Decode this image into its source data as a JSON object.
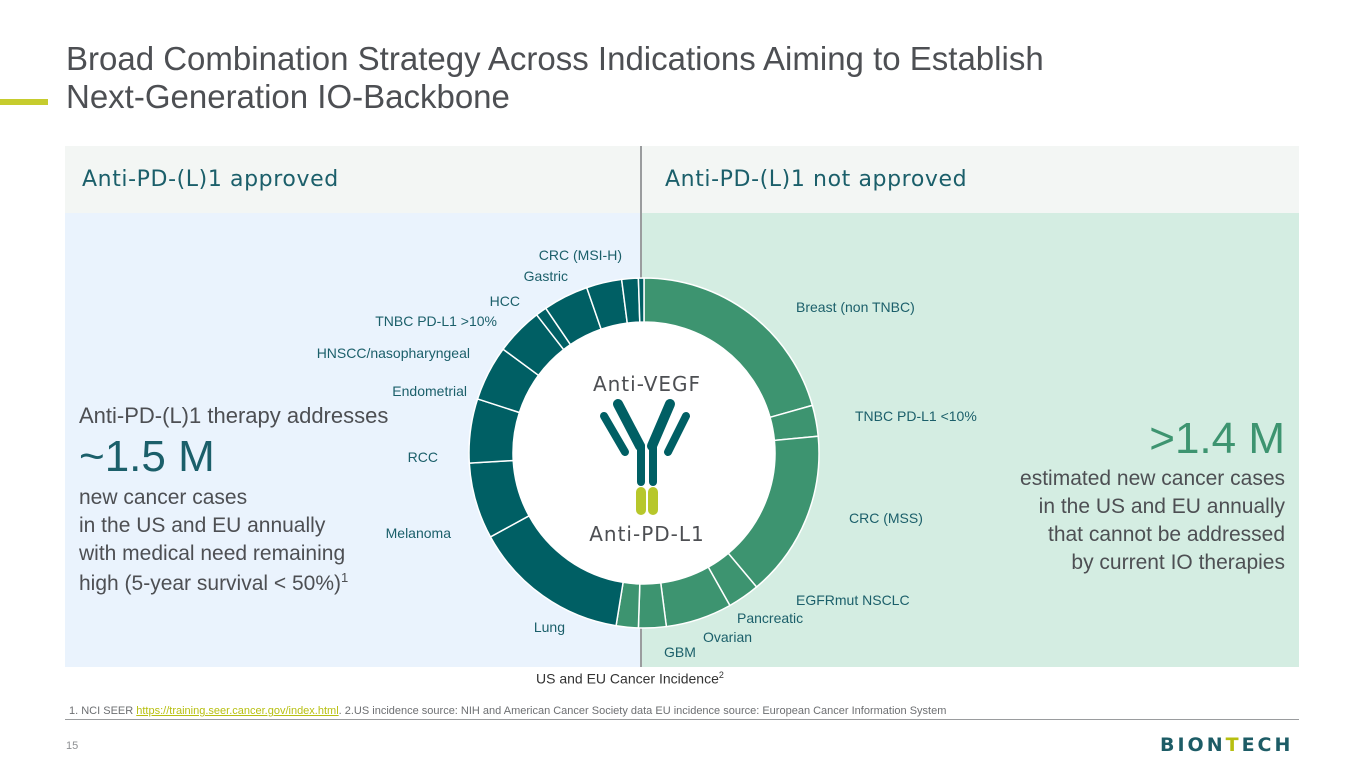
{
  "title": {
    "line1": "Broad Combination Strategy Across Indications Aiming to Establish",
    "line2": "Next-Generation IO-Backbone"
  },
  "colors": {
    "accent": "#c6cc2e",
    "dark_teal": "#005f64",
    "green": "#3d9470",
    "left_panel": "#eaf3fd",
    "right_panel": "#d4ede2",
    "header_bg": "#f3f6f4",
    "text_teal": "#1b5f6a",
    "antibody_dark": "#005f64",
    "antibody_lime": "#b7c72b"
  },
  "headers": {
    "approved": "Anti-PD-(L)1 approved",
    "not_approved": "Anti-PD-(L)1 not approved"
  },
  "left_stat": {
    "intro": "Anti-PD-(L)1 therapy addresses",
    "value": "~1.5 M",
    "line1": "new cancer cases",
    "line2": "in the US and EU annually",
    "line3": "with medical need remaining",
    "line4": "high (5-year survival < 50%)",
    "footnote_ref": "1"
  },
  "right_stat": {
    "value": ">1.4 M",
    "line1": "estimated new cancer cases",
    "line2": "in the US and EU annually",
    "line3": "that cannot be addressed",
    "line4": "by current IO therapies"
  },
  "center": {
    "top_label": "Anti-VEGF",
    "bottom_label": "Anti-PD-L1",
    "antibody_icon": "antibody-icon"
  },
  "chart_caption": {
    "text": "US and EU Cancer Incidence",
    "ref": "2"
  },
  "chart_data": {
    "type": "pie",
    "title": "US and EU Cancer Incidence",
    "unit": "share of donut (approximate)",
    "slices": [
      {
        "label": "Breast (non TNBC)",
        "value": 20.2,
        "group": "not approved"
      },
      {
        "label": "TNBC PD-L1 <10%",
        "value": 2.8,
        "group": "not approved"
      },
      {
        "label": "CRC (MSS)",
        "value": 15.1,
        "group": "not approved"
      },
      {
        "label": "EGFRmut NSCLC",
        "value": 2.9,
        "group": "not approved"
      },
      {
        "label": "Pancreatic",
        "value": 6.0,
        "group": "not approved"
      },
      {
        "label": "Ovarian",
        "value": 2.5,
        "group": "not approved"
      },
      {
        "label": "GBM",
        "value": 2.0,
        "group": "not approved"
      },
      {
        "label": "Lung",
        "value": 14.2,
        "group": "approved"
      },
      {
        "label": "Melanoma",
        "value": 6.9,
        "group": "approved"
      },
      {
        "label": "RCC",
        "value": 5.8,
        "group": "approved"
      },
      {
        "label": "Endometrial",
        "value": 5.0,
        "group": "approved"
      },
      {
        "label": "HNSCC/nasopharyngeal",
        "value": 4.3,
        "group": "approved"
      },
      {
        "label": "TNBC  PD-L1 >10%",
        "value": 1.0,
        "group": "approved"
      },
      {
        "label": "HCC",
        "value": 4.1,
        "group": "approved"
      },
      {
        "label": "Gastric",
        "value": 3.2,
        "group": "approved"
      },
      {
        "label": "CRC (MSI-H)",
        "value": 1.5,
        "group": "approved"
      },
      {
        "label": "",
        "value": 0.5,
        "group": "approved"
      }
    ]
  },
  "footnote": {
    "prefix": "1. NCI SEER ",
    "link": "https://training.seer.cancer.gov/index.html",
    "suffix": ". 2.US incidence source: NIH and American Cancer Society data EU incidence source: European Cancer Information System"
  },
  "page_number": "15",
  "logo": {
    "part1": "BION",
    "part2": "T",
    "part3": "ECH"
  }
}
